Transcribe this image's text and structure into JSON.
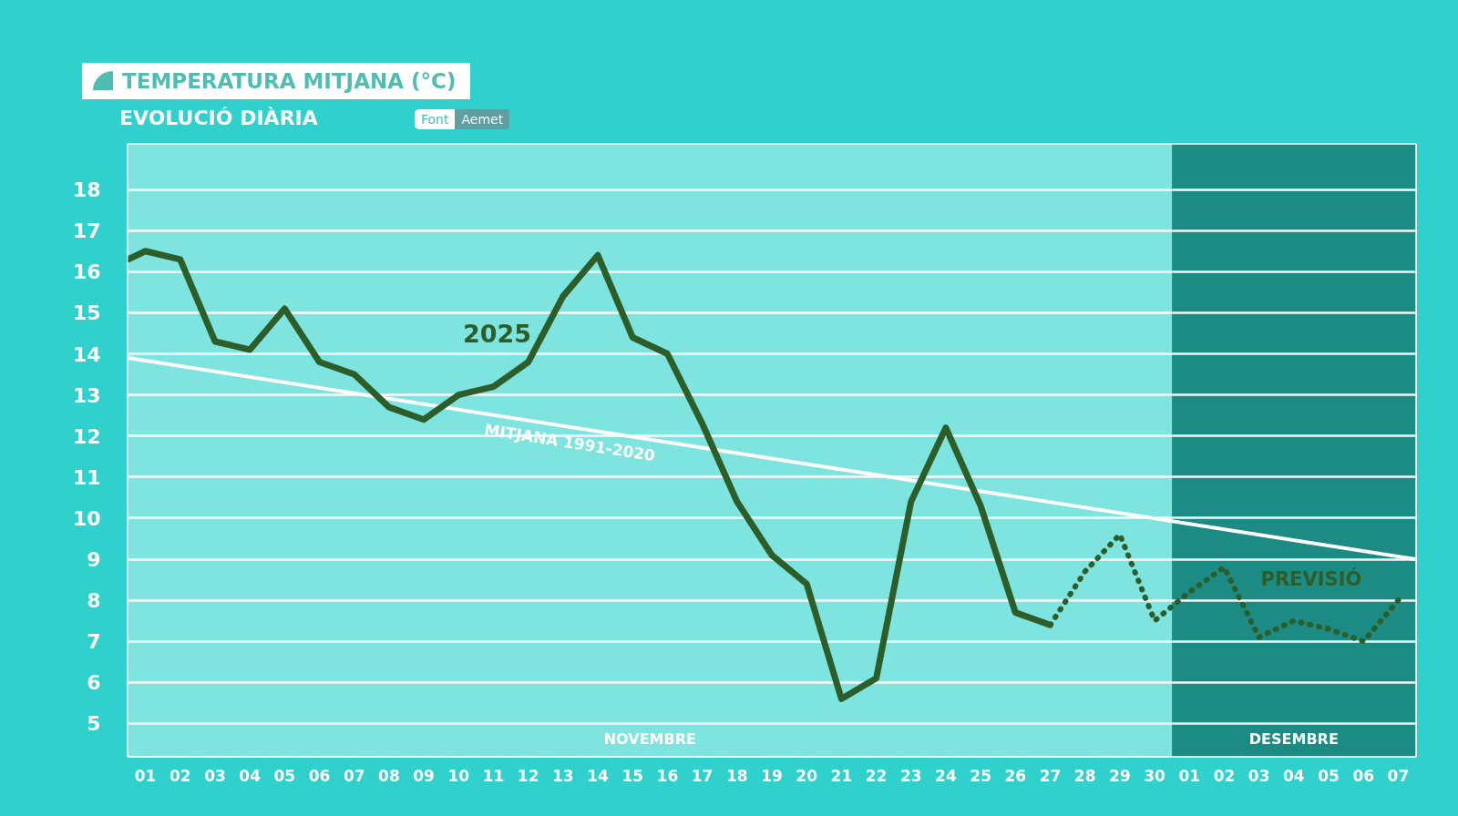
{
  "chart_data": {
    "type": "line",
    "title": "TEMPERATURA MITJANA (°C)",
    "subtitle": "EVOLUCIÓ DIÀRIA",
    "annotations": [
      "Font",
      "Aemet"
    ],
    "xlim": [
      "2025-10-31T12:00",
      "2025-12-07T12:00"
    ],
    "xticks": [
      {
        "value": "2025-11-01",
        "label": "01"
      },
      {
        "value": "2025-11-02",
        "label": "02"
      },
      {
        "value": "2025-11-03",
        "label": "03"
      },
      {
        "value": "2025-11-04",
        "label": "04"
      },
      {
        "value": "2025-11-05",
        "label": "05"
      },
      {
        "value": "2025-11-06",
        "label": "06"
      },
      {
        "value": "2025-11-07",
        "label": "07"
      },
      {
        "value": "2025-11-08",
        "label": "08"
      },
      {
        "value": "2025-11-09",
        "label": "09"
      },
      {
        "value": "2025-11-10",
        "label": "10"
      },
      {
        "value": "2025-11-11",
        "label": "11"
      },
      {
        "value": "2025-11-12",
        "label": "12"
      },
      {
        "value": "2025-11-13",
        "label": "13"
      },
      {
        "value": "2025-11-14",
        "label": "14"
      },
      {
        "value": "2025-11-15",
        "label": "15"
      },
      {
        "value": "2025-11-16",
        "label": "16"
      },
      {
        "value": "2025-11-17",
        "label": "17"
      },
      {
        "value": "2025-11-18",
        "label": "18"
      },
      {
        "value": "2025-11-19",
        "label": "19"
      },
      {
        "value": "2025-11-20",
        "label": "20"
      },
      {
        "value": "2025-11-21",
        "label": "21"
      },
      {
        "value": "2025-11-22",
        "label": "22"
      },
      {
        "value": "2025-11-23",
        "label": "23"
      },
      {
        "value": "2025-11-24",
        "label": "24"
      },
      {
        "value": "2025-11-25",
        "label": "25"
      },
      {
        "value": "2025-11-26",
        "label": "26"
      },
      {
        "value": "2025-11-27",
        "label": "27"
      },
      {
        "value": "2025-11-28",
        "label": "28"
      },
      {
        "value": "2025-11-29",
        "label": "29"
      },
      {
        "value": "2025-11-30",
        "label": "30"
      },
      {
        "value": "2025-12-01",
        "label": "01"
      },
      {
        "value": "2025-12-02",
        "label": "02"
      },
      {
        "value": "2025-12-03",
        "label": "03"
      },
      {
        "value": "2025-12-04",
        "label": "04"
      },
      {
        "value": "2025-12-05",
        "label": "05"
      },
      {
        "value": "2025-12-06",
        "label": "06"
      },
      {
        "value": "2025-12-07",
        "label": "07"
      }
    ],
    "ylim": [
      4.2,
      19.1
    ],
    "yticks": [
      5,
      6,
      7,
      8,
      9,
      10,
      11,
      12,
      13,
      14,
      15,
      16,
      17,
      18
    ],
    "grid": "y",
    "line_style": "solid",
    "bands": [
      {
        "axis": "x",
        "from": "2025-10-31T12:00",
        "to": "2025-11-30T12:00",
        "label": "NOVEMBRE",
        "color": "#7de4e0"
      },
      {
        "axis": "x",
        "from": "2025-11-30T12:00",
        "to": "2025-12-07T12:00",
        "label": "DESEMBRE",
        "color": "#1b8b83"
      }
    ],
    "series": [
      {
        "name": "2025",
        "color": "#2d5e2a",
        "x": [
          "2025-10-31T12:00",
          "2025-11-01",
          "2025-11-02",
          "2025-11-03",
          "2025-11-04",
          "2025-11-05",
          "2025-11-06",
          "2025-11-07",
          "2025-11-08",
          "2025-11-09",
          "2025-11-10",
          "2025-11-11",
          "2025-11-12",
          "2025-11-13",
          "2025-11-14",
          "2025-11-15",
          "2025-11-16",
          "2025-11-17",
          "2025-11-18",
          "2025-11-19",
          "2025-11-20",
          "2025-11-21",
          "2025-11-22",
          "2025-11-23",
          "2025-11-24",
          "2025-11-25",
          "2025-11-26",
          "2025-11-27"
        ],
        "values": [
          16.3,
          16.5,
          16.3,
          14.3,
          14.1,
          15.1,
          13.8,
          13.5,
          12.7,
          12.4,
          13.0,
          13.2,
          13.8,
          15.4,
          16.4,
          14.4,
          14.0,
          12.3,
          10.4,
          9.1,
          8.4,
          5.6,
          6.1,
          10.4,
          12.2,
          10.3,
          7.7,
          7.4
        ]
      },
      {
        "name": "PREVISIÓ",
        "color": "#2d5e2a",
        "line_style": "dotted",
        "x": [
          "2025-11-27",
          "2025-11-28",
          "2025-11-29",
          "2025-11-30",
          "2025-12-01",
          "2025-12-02",
          "2025-12-03",
          "2025-12-04",
          "2025-12-05",
          "2025-12-06",
          "2025-12-07"
        ],
        "values": [
          7.4,
          8.7,
          9.6,
          7.5,
          8.2,
          8.8,
          7.1,
          7.5,
          7.3,
          7.0,
          8.0
        ]
      },
      {
        "name": "MITJANA 1991-2020",
        "color": "#ffffff",
        "x": [
          "2025-10-31T12:00",
          "2025-12-07T12:00"
        ],
        "values": [
          13.9,
          9.0
        ]
      }
    ]
  }
}
